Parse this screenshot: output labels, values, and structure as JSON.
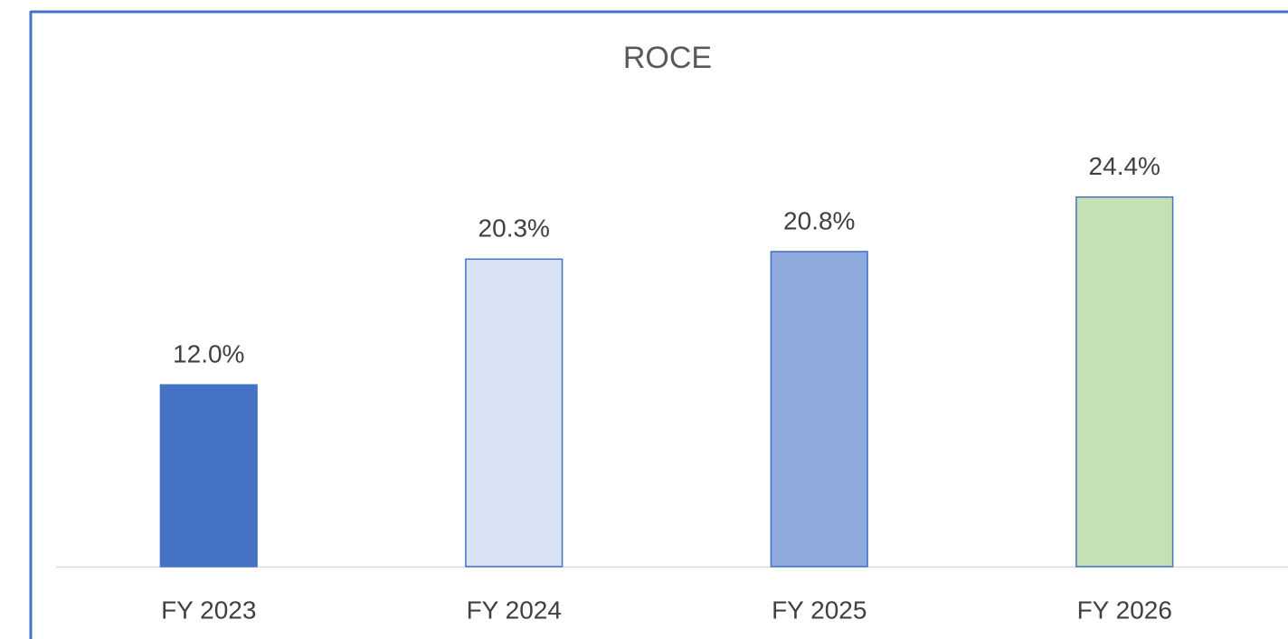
{
  "chart_data": {
    "type": "bar",
    "title": "ROCE",
    "categories": [
      "FY 2023",
      "FY 2024",
      "FY 2025",
      "FY 2026"
    ],
    "values": [
      12.0,
      20.3,
      20.8,
      24.4
    ],
    "value_labels": [
      "12.0%",
      "20.3%",
      "20.8%",
      "24.4%"
    ],
    "colors": [
      "#4472c4",
      "#dae3f3",
      "#8faadc",
      "#c5e0b4"
    ],
    "edge_color": "#4472c4",
    "ylim": [
      0,
      30
    ]
  }
}
